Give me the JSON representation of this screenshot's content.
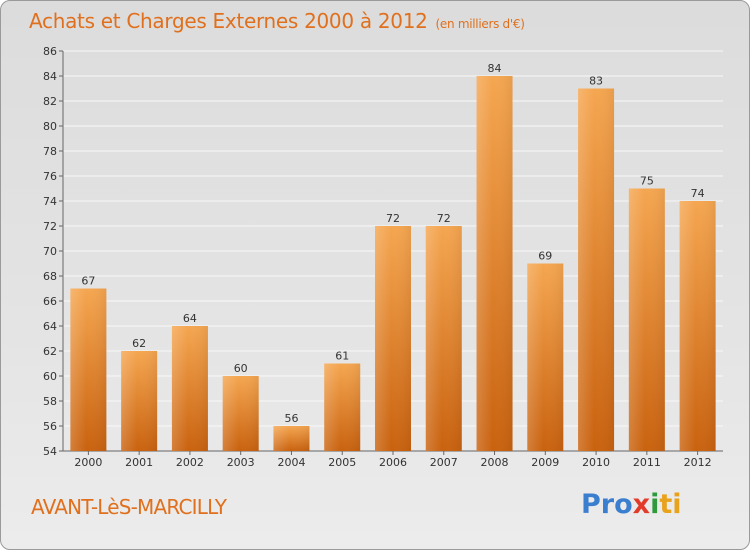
{
  "header": {
    "title": "Achats et Charges Externes 2000 à 2012",
    "subtitle": "(en milliers d'€)"
  },
  "footer": {
    "commune": "AVANT-LèS-MARCILLY",
    "logo": [
      "Pro",
      "x",
      "i",
      "ti"
    ]
  },
  "colors": {
    "bar_light": "#f5a650",
    "bar_dark": "#c9620f",
    "title": "#e0701d",
    "grid": "#f8f8f8"
  },
  "chart_data": {
    "type": "bar",
    "title": "Achats et Charges Externes 2000 à 2012",
    "subtitle": "(en milliers d'€)",
    "xlabel": "",
    "ylabel": "",
    "categories": [
      "2000",
      "2001",
      "2002",
      "2003",
      "2004",
      "2005",
      "2006",
      "2007",
      "2008",
      "2009",
      "2010",
      "2011",
      "2012"
    ],
    "values": [
      67,
      62,
      64,
      60,
      56,
      61,
      72,
      72,
      84,
      69,
      83,
      75,
      74
    ],
    "ylim": [
      54,
      86
    ],
    "yticks": [
      54,
      56,
      58,
      60,
      62,
      64,
      66,
      68,
      70,
      72,
      74,
      76,
      78,
      80,
      82,
      84,
      86
    ],
    "grid": true,
    "data_labels": true
  }
}
